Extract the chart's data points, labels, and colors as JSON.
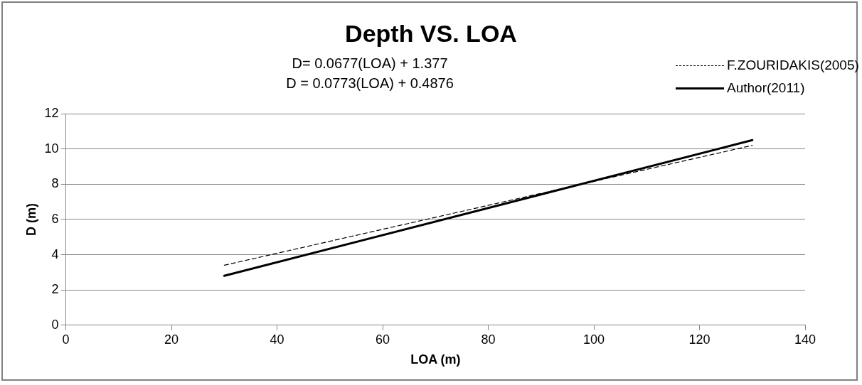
{
  "chart_data": {
    "type": "line",
    "title": "Depth VS. LOA",
    "xlabel": "LOA (m)",
    "ylabel": "D (m)",
    "annotations": [
      "D= 0.0677(LOA) + 1.377",
      "D = 0.0773(LOA) + 0.4876"
    ],
    "x": [
      30,
      130
    ],
    "series": [
      {
        "name": "F.ZOURIDAKIS(2005)",
        "color": "#000000",
        "line_style": "dashed",
        "values": [
          3.4,
          10.2
        ]
      },
      {
        "name": "Author(2011)",
        "color": "#000000",
        "line_style": "solid",
        "values": [
          2.8,
          10.5
        ]
      }
    ],
    "xlim": [
      0,
      140
    ],
    "xticks": [
      0,
      20,
      40,
      60,
      80,
      100,
      120,
      140
    ],
    "ylim": [
      0,
      12
    ],
    "yticks": [
      0,
      2,
      4,
      6,
      8,
      10,
      12
    ],
    "grid": "y",
    "legend": "top right",
    "marker": "none"
  }
}
